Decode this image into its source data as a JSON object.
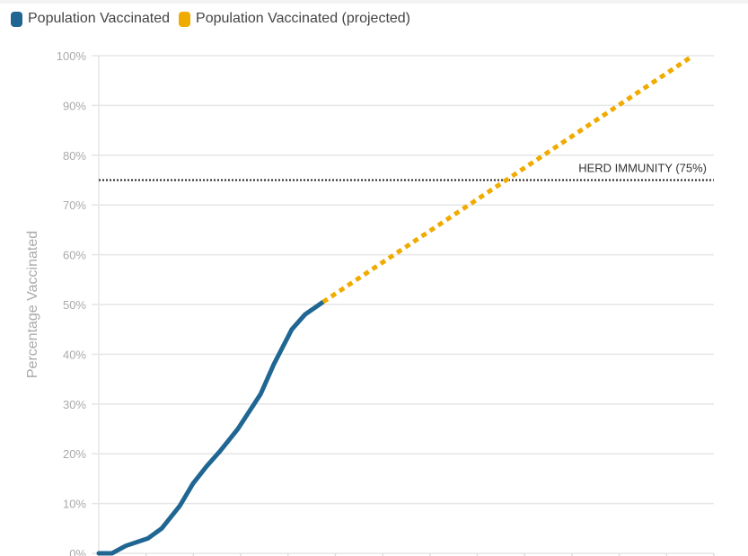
{
  "chart_data": {
    "type": "line",
    "title": "",
    "xlabel": "",
    "ylabel": "Percentage Vaccinated",
    "xlim": [
      0,
      13
    ],
    "ylim": [
      0,
      100
    ],
    "yticks": [
      "0%",
      "10%",
      "20%",
      "30%",
      "40%",
      "50%",
      "60%",
      "70%",
      "80%",
      "90%",
      "100%"
    ],
    "grid": true,
    "legend_position": "top-left",
    "series": [
      {
        "name": "Population Vaccinated",
        "color": "#1f6693",
        "style": "solid",
        "x": [
          0,
          0.28,
          0.57,
          1.04,
          1.33,
          1.71,
          1.99,
          2.28,
          2.56,
          2.94,
          3.42,
          3.7,
          4.08,
          4.36,
          4.74
        ],
        "y": [
          0,
          0,
          1.5,
          3,
          5,
          9.5,
          14,
          17.5,
          20.5,
          25,
          32,
          38,
          45,
          48,
          50.5
        ]
      },
      {
        "name": "Population Vaccinated (projected)",
        "color": "#f0ab00",
        "style": "dotted",
        "x": [
          4.74,
          12.56
        ],
        "y": [
          50.5,
          100
        ]
      }
    ],
    "annotations": [
      {
        "type": "hline",
        "y": 75,
        "label": "HERD IMMUNITY (75%)",
        "color": "#222"
      }
    ]
  }
}
